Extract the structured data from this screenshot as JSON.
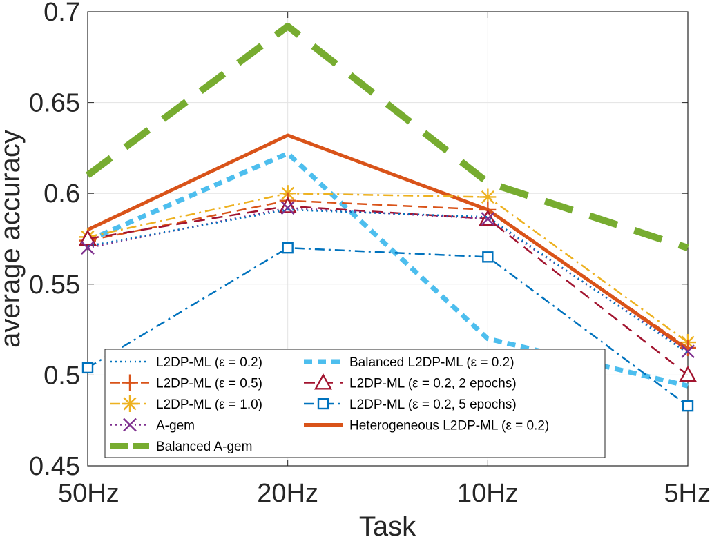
{
  "chart_data": {
    "type": "line",
    "title": "",
    "xlabel": "Task",
    "ylabel": "average accuracy",
    "categories": [
      "50Hz",
      "20Hz",
      "10Hz",
      "5Hz"
    ],
    "ylim": [
      0.45,
      0.7
    ],
    "yticks": [
      "0.45",
      "0.5",
      "0.55",
      "0.6",
      "0.65",
      "0.7"
    ],
    "grid": true,
    "legend_position": "lower-left",
    "series": [
      {
        "name": "L2DP-ML (ε = 0.2)",
        "values": [
          0.571,
          0.591,
          0.587,
          0.512
        ],
        "color": "#0072BD",
        "dash": "2 5",
        "marker": "none"
      },
      {
        "name": "L2DP-ML (ε = 0.5)",
        "values": [
          0.574,
          0.596,
          0.591,
          0.515
        ],
        "color": "#D95319",
        "dash": "14 8",
        "marker": "plus"
      },
      {
        "name": "L2DP-ML (ε = 1.0)",
        "values": [
          0.576,
          0.6,
          0.598,
          0.518
        ],
        "color": "#EDB120",
        "dash": "14 6 3 6",
        "marker": "asterisk"
      },
      {
        "name": "A-gem",
        "values": [
          0.57,
          0.592,
          0.586,
          0.513
        ],
        "color": "#7E2F8E",
        "dash": "2 5",
        "marker": "x"
      },
      {
        "name": "Balanced A-gem",
        "values": [
          0.61,
          0.692,
          0.606,
          0.57
        ],
        "color": "#77AC30",
        "dash": "42 26",
        "marker": "none"
      },
      {
        "name": "Balanced L2DP-ML (ε = 0.2)",
        "values": [
          0.574,
          0.622,
          0.52,
          0.494
        ],
        "color": "#4DBEEE",
        "dash": "12 8",
        "marker": "none"
      },
      {
        "name": "L2DP-ML (ε = 0.2, 2 epochs)",
        "values": [
          0.575,
          0.593,
          0.586,
          0.5
        ],
        "color": "#A2142F",
        "dash": "16 10",
        "marker": "triangle"
      },
      {
        "name": "L2DP-ML (ε = 0.2, 5 epochs)",
        "values": [
          0.504,
          0.57,
          0.565,
          0.483
        ],
        "color": "#0072BD",
        "dash": "14 6 3 6",
        "marker": "square"
      },
      {
        "name": "Heterogeneous L2DP-ML (ε = 0.2)",
        "values": [
          0.58,
          0.632,
          0.591,
          0.514
        ],
        "color": "#D95319",
        "dash": "",
        "marker": "none"
      }
    ]
  }
}
